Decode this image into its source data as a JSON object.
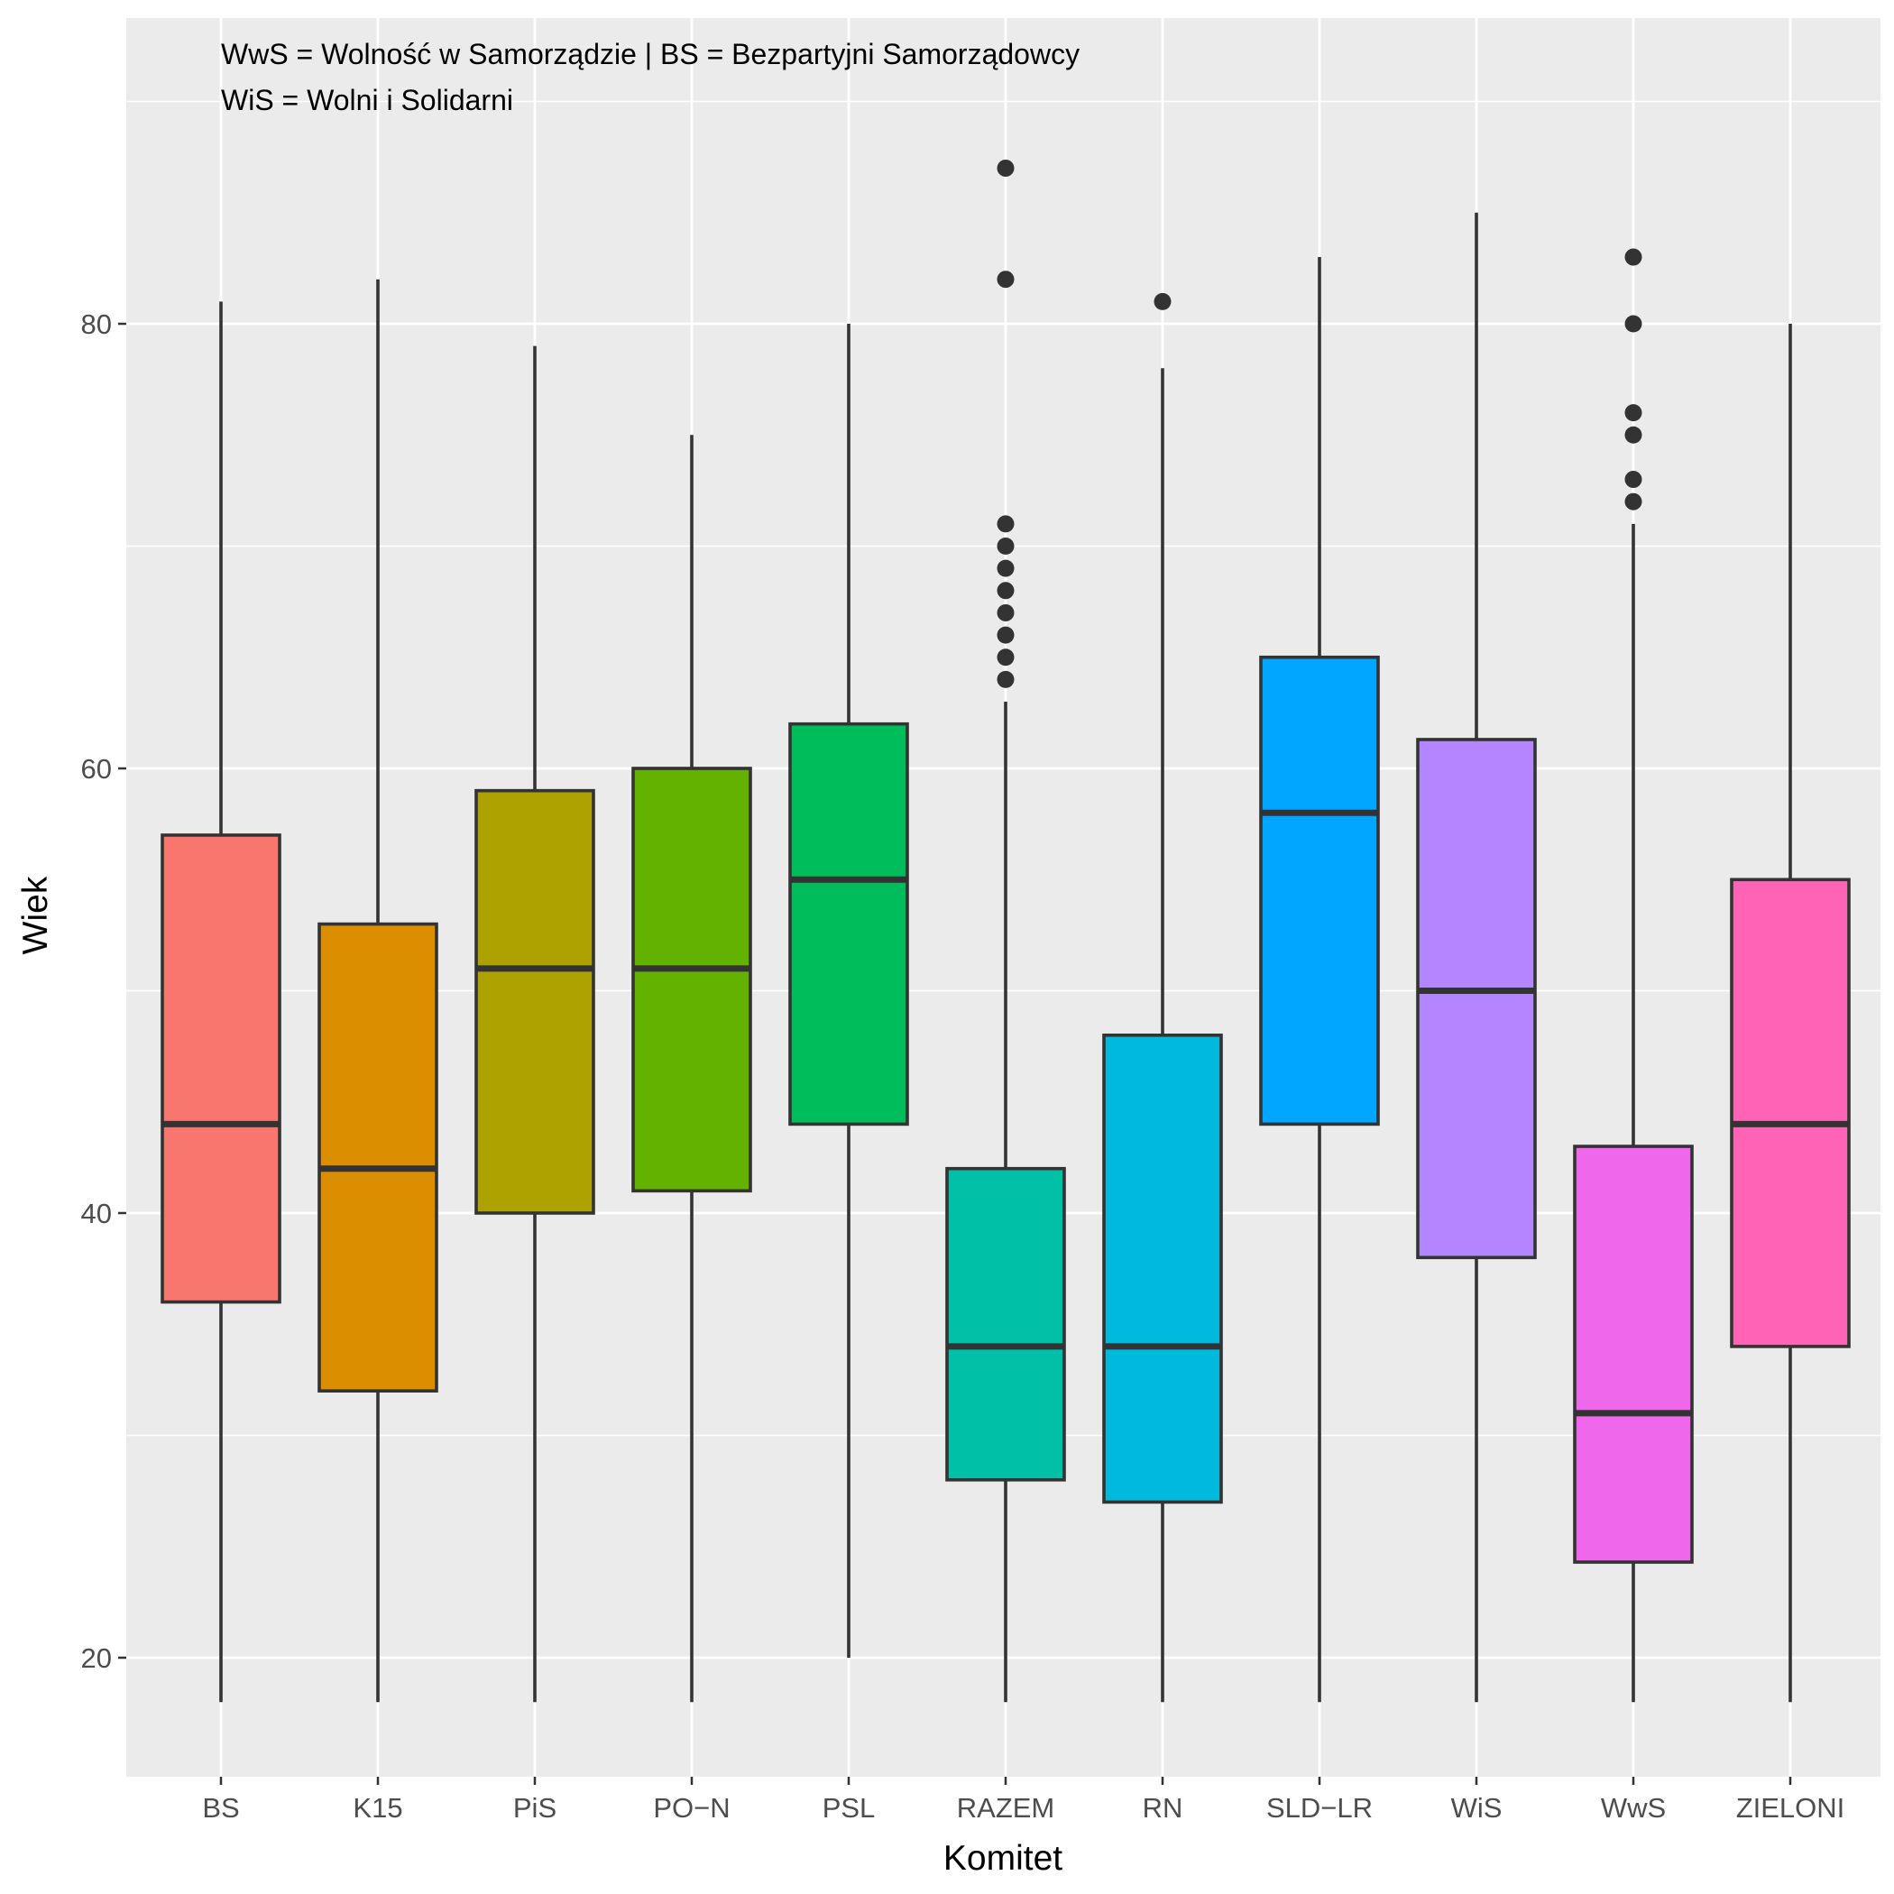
{
  "chart_data": {
    "type": "boxplot",
    "xlabel": "Komitet",
    "ylabel": "Wiek",
    "ylim": [
      14,
      94
    ],
    "yticks": [
      20,
      40,
      60,
      80
    ],
    "grid": true,
    "annotations": [
      "WwS = Wolność w Samorządzie | BS = Bezpartyjni Samorządowcy",
      "WiS = Wolni i Solidarni"
    ],
    "categories": [
      "BS",
      "K15",
      "PiS",
      "PO−N",
      "PSL",
      "RAZEM",
      "RN",
      "SLD−LR",
      "WiS",
      "WwS",
      "ZIELONI"
    ],
    "boxes": [
      {
        "name": "BS",
        "color": "#F8766D",
        "min": 18,
        "q1": 36,
        "median": 44,
        "q3": 57,
        "max": 81,
        "outliers": []
      },
      {
        "name": "K15",
        "color": "#DB8E00",
        "min": 18,
        "q1": 32,
        "median": 42,
        "q3": 53,
        "max": 82,
        "outliers": []
      },
      {
        "name": "PiS",
        "color": "#AEA200",
        "min": 18,
        "q1": 40,
        "median": 51,
        "q3": 59,
        "max": 79,
        "outliers": []
      },
      {
        "name": "PO−N",
        "color": "#64B200",
        "min": 18,
        "q1": 41,
        "median": 51,
        "q3": 60,
        "max": 75,
        "outliers": []
      },
      {
        "name": "PSL",
        "color": "#00BD5C",
        "min": 20,
        "q1": 44,
        "median": 55,
        "q3": 62,
        "max": 80,
        "outliers": []
      },
      {
        "name": "RAZEM",
        "color": "#00C1A7",
        "min": 18,
        "q1": 28,
        "median": 34,
        "q3": 42,
        "max": 63,
        "outliers": [
          64,
          65,
          66,
          67,
          68,
          69,
          70,
          71,
          82,
          87
        ]
      },
      {
        "name": "RN",
        "color": "#00BADE",
        "min": 18,
        "q1": 27,
        "median": 34,
        "q3": 48,
        "max": 78,
        "outliers": [
          81
        ]
      },
      {
        "name": "SLD−LR",
        "color": "#00A6FF",
        "min": 18,
        "q1": 44,
        "median": 58,
        "q3": 65,
        "max": 83,
        "outliers": []
      },
      {
        "name": "WiS",
        "color": "#B385FF",
        "min": 18,
        "q1": 38,
        "median": 50,
        "q3": 61.3,
        "max": 85,
        "outliers": []
      },
      {
        "name": "WwS",
        "color": "#EF67EB",
        "min": 18,
        "q1": 24.3,
        "median": 31,
        "q3": 43,
        "max": 71,
        "outliers": [
          72,
          73,
          75,
          76,
          80,
          83
        ]
      },
      {
        "name": "ZIELONI",
        "color": "#FF63B6",
        "min": 18,
        "q1": 34,
        "median": 44,
        "q3": 55,
        "max": 80,
        "outliers": []
      }
    ]
  }
}
